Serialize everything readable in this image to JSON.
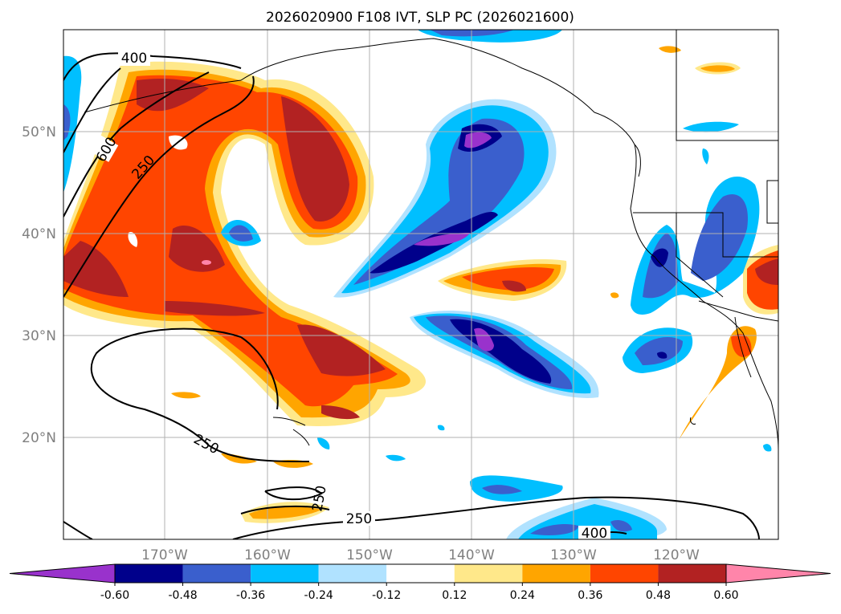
{
  "map": {
    "title": "2026020900 F108 IVT, SLP PC (2026021600)",
    "lon_labels": [
      "170°W",
      "160°W",
      "150°W",
      "140°W",
      "130°W",
      "120°W"
    ],
    "lat_labels": [
      "50°N",
      "40°N",
      "30°N",
      "20°N"
    ],
    "extent": {
      "lon_min": -180,
      "lon_max": -110,
      "lat_min": 10,
      "lat_max": 60
    }
  },
  "contour_labels": [
    "400",
    "600",
    "250",
    "250",
    "250",
    "250",
    "400"
  ],
  "colorbar": {
    "levels": [
      "-0.60",
      "-0.48",
      "-0.36",
      "-0.24",
      "-0.12",
      "0.12",
      "0.24",
      "0.36",
      "0.48",
      "0.60"
    ],
    "colors": [
      "#9932cc",
      "#00008b",
      "#3a5fcd",
      "#00bfff",
      "#b0e2ff",
      "#ffffff",
      "#ffe88a",
      "#ffa500",
      "#ff4500",
      "#b22222",
      "#ff85aa"
    ]
  }
}
